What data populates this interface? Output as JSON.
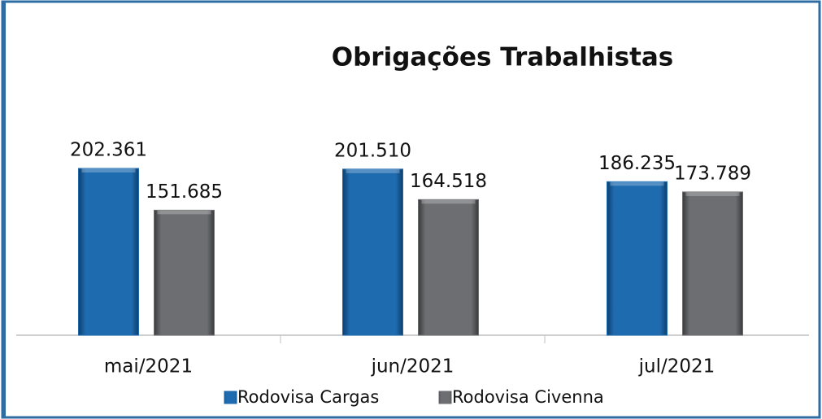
{
  "chart_data": {
    "type": "bar",
    "title": "Obrigações Trabalhistas",
    "categories": [
      "mai/2021",
      "jun/2021",
      "jul/2021"
    ],
    "series": [
      {
        "name": "Rodovisa Cargas",
        "color": "#1f6bb0",
        "values": [
          202361,
          201510,
          186235
        ],
        "value_labels": [
          "202.361",
          "201.510",
          "186.235"
        ]
      },
      {
        "name": "Rodovisa Civenna",
        "color": "#6d6e71",
        "values": [
          151685,
          164518,
          173789
        ],
        "value_labels": [
          "151.685",
          "164.518",
          "173.789"
        ]
      }
    ],
    "legend": "bottom"
  }
}
